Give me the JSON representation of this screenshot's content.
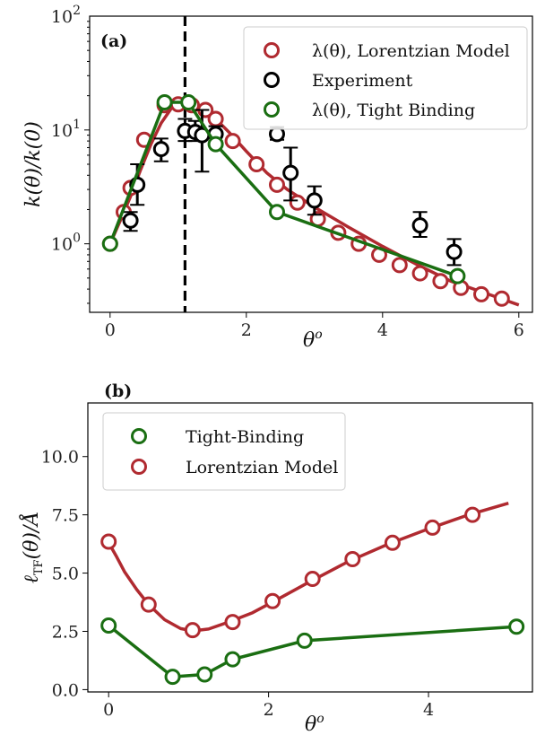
{
  "colors": {
    "lorentzian": "#b02a30",
    "experiment": "#000000",
    "tight": "#1a6e12",
    "marker_fill": "#ffffff"
  },
  "chart_data": [
    {
      "type": "line",
      "panel_label": "(a)",
      "xlabel": "θ^o",
      "ylabel": "k(θ)/k(0)",
      "yscale": "log",
      "xlim": [
        -0.3,
        6.2
      ],
      "ylim": [
        0.25,
        100
      ],
      "x_ticks": [
        0,
        2,
        4,
        6
      ],
      "y_ticks": [
        {
          "value": 1,
          "label": "10^0"
        },
        {
          "value": 10,
          "label": "10^1"
        },
        {
          "value": 100,
          "label": "10^2"
        }
      ],
      "vline_x": 1.1,
      "legend": {
        "position": "top-right",
        "entries": [
          {
            "label": "λ(θ), Lorentzian Model",
            "series": "lorentzian"
          },
          {
            "label": "Experiment",
            "series": "experiment"
          },
          {
            "label": "λ(θ), Tight Binding",
            "series": "tight"
          }
        ]
      },
      "series": [
        {
          "name": "λ(θ), Lorentzian Model",
          "key": "lorentzian",
          "curve": [
            [
              0,
              1.0
            ],
            [
              0.15,
              1.6
            ],
            [
              0.3,
              2.6
            ],
            [
              0.45,
              4.5
            ],
            [
              0.6,
              7.5
            ],
            [
              0.75,
              11.5
            ],
            [
              0.9,
              15.5
            ],
            [
              1.05,
              17.2
            ],
            [
              1.2,
              16.8
            ],
            [
              1.35,
              15
            ],
            [
              1.55,
              12.5
            ],
            [
              1.75,
              9.5
            ],
            [
              2.0,
              6.5
            ],
            [
              2.3,
              4.2
            ],
            [
              2.6,
              3.0
            ],
            [
              3.0,
              2.1
            ],
            [
              3.5,
              1.4
            ],
            [
              4.0,
              0.95
            ],
            [
              4.5,
              0.66
            ],
            [
              5.0,
              0.47
            ],
            [
              5.5,
              0.37
            ],
            [
              6.0,
              0.29
            ]
          ],
          "points": [
            [
              0,
              1.0
            ],
            [
              0.2,
              1.9
            ],
            [
              0.3,
              3.1
            ],
            [
              0.5,
              8.2
            ],
            [
              0.8,
              16.5
            ],
            [
              1.0,
              16.8
            ],
            [
              1.2,
              16.5
            ],
            [
              1.4,
              15
            ],
            [
              1.55,
              12.5
            ],
            [
              1.8,
              8
            ],
            [
              2.15,
              5.0
            ],
            [
              2.45,
              3.3
            ],
            [
              2.75,
              2.3
            ],
            [
              3.05,
              1.65
            ],
            [
              3.35,
              1.25
            ],
            [
              3.65,
              1.0
            ],
            [
              3.95,
              0.8
            ],
            [
              4.25,
              0.65
            ],
            [
              4.55,
              0.55
            ],
            [
              4.85,
              0.47
            ],
            [
              5.15,
              0.41
            ],
            [
              5.45,
              0.36
            ],
            [
              5.75,
              0.33
            ]
          ]
        },
        {
          "name": "Experiment",
          "key": "experiment",
          "points": [
            {
              "x": 0.3,
              "y": 1.6,
              "lo": 1.3,
              "hi": 1.9
            },
            {
              "x": 0.4,
              "y": 3.3,
              "lo": 2.2,
              "hi": 5.0
            },
            {
              "x": 0.75,
              "y": 6.8,
              "lo": 5.3,
              "hi": 8.4
            },
            {
              "x": 1.1,
              "y": 9.8,
              "lo": 8.0,
              "hi": 12.5
            },
            {
              "x": 1.25,
              "y": 9.6,
              "lo": 8.0,
              "hi": 12.0
            },
            {
              "x": 1.35,
              "y": 9.0,
              "lo": 4.3,
              "hi": 15.0
            },
            {
              "x": 1.55,
              "y": 9.2,
              "lo": 8.0,
              "hi": 10.8
            },
            {
              "x": 2.45,
              "y": 9.2,
              "lo": 8.2,
              "hi": 10.6
            },
            {
              "x": 2.65,
              "y": 4.2,
              "lo": 2.4,
              "hi": 7.0
            },
            {
              "x": 3.0,
              "y": 2.4,
              "lo": 1.8,
              "hi": 3.2
            },
            {
              "x": 4.55,
              "y": 1.45,
              "lo": 1.15,
              "hi": 1.9
            },
            {
              "x": 5.05,
              "y": 0.85,
              "lo": 0.65,
              "hi": 1.1
            }
          ]
        },
        {
          "name": "λ(θ), Tight Binding",
          "key": "tight",
          "points": [
            [
              0,
              1.0
            ],
            [
              0.8,
              17.5
            ],
            [
              1.15,
              17.5
            ],
            [
              1.55,
              7.5
            ],
            [
              2.45,
              1.9
            ],
            [
              5.1,
              0.52
            ]
          ]
        }
      ]
    },
    {
      "type": "line",
      "panel_label": "(b)",
      "xlabel": "θ^o",
      "ylabel": "ℓ_TF(θ)/Å",
      "xlim": [
        -0.26,
        5.3
      ],
      "ylim": [
        -0.1,
        12.3
      ],
      "x_ticks": [
        0,
        2,
        4
      ],
      "y_ticks": [
        {
          "value": 0,
          "label": "0.0"
        },
        {
          "value": 2.5,
          "label": "2.5"
        },
        {
          "value": 5,
          "label": "5.0"
        },
        {
          "value": 7.5,
          "label": "7.5"
        },
        {
          "value": 10,
          "label": "10.0"
        }
      ],
      "legend": {
        "position": "top-left",
        "entries": [
          {
            "label": "Tight-Binding",
            "series": "tight"
          },
          {
            "label": "Lorentzian Model",
            "series": "lorentzian"
          }
        ]
      },
      "series": [
        {
          "name": "Tight-Binding",
          "key": "tight",
          "points": [
            [
              0,
              2.75
            ],
            [
              0.8,
              0.55
            ],
            [
              1.2,
              0.65
            ],
            [
              1.55,
              1.3
            ],
            [
              2.45,
              2.1
            ],
            [
              5.1,
              2.7
            ]
          ]
        },
        {
          "name": "Lorentzian Model",
          "key": "lorentzian",
          "curve": [
            [
              0,
              6.3
            ],
            [
              0.1,
              5.7
            ],
            [
              0.2,
              5.05
            ],
            [
              0.35,
              4.3
            ],
            [
              0.5,
              3.65
            ],
            [
              0.7,
              3.0
            ],
            [
              0.9,
              2.62
            ],
            [
              1.05,
              2.52
            ],
            [
              1.25,
              2.6
            ],
            [
              1.5,
              2.9
            ],
            [
              1.8,
              3.3
            ],
            [
              2.1,
              3.85
            ],
            [
              2.5,
              4.6
            ],
            [
              3.0,
              5.5
            ],
            [
              3.5,
              6.25
            ],
            [
              4.0,
              6.9
            ],
            [
              4.5,
              7.5
            ],
            [
              5.0,
              8.0
            ]
          ],
          "points": [
            [
              0,
              6.35
            ],
            [
              0.5,
              3.65
            ],
            [
              1.05,
              2.55
            ],
            [
              1.55,
              2.9
            ],
            [
              2.05,
              3.8
            ],
            [
              2.55,
              4.75
            ],
            [
              3.05,
              5.6
            ],
            [
              3.55,
              6.3
            ],
            [
              4.05,
              6.95
            ],
            [
              4.55,
              7.5
            ]
          ]
        }
      ]
    }
  ]
}
